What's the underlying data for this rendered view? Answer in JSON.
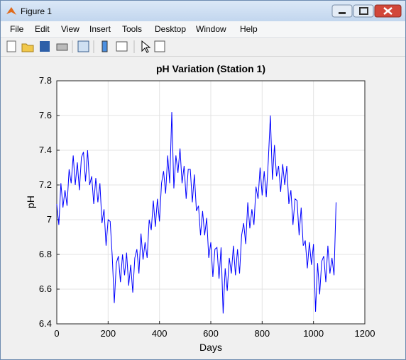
{
  "window": {
    "title": "Figure 1",
    "menu": [
      "File",
      "Edit",
      "View",
      "Insert",
      "Tools",
      "Desktop",
      "Window",
      "Help"
    ]
  },
  "chart_data": {
    "type": "line",
    "title": "pH Variation (Station 1)",
    "x_label": "Days",
    "y_label": "pH",
    "color": "#0000ff",
    "grid": true,
    "xlim": [
      0,
      1200
    ],
    "xticks": [
      0,
      200,
      400,
      600,
      800,
      1000,
      1200
    ],
    "ylim": [
      6.4,
      7.8
    ],
    "yticks": [
      6.4,
      6.6,
      6.8,
      7,
      7.2,
      7.4,
      7.6,
      7.8
    ],
    "x": [
      0,
      8,
      16,
      24,
      32,
      40,
      48,
      56,
      64,
      72,
      80,
      88,
      96,
      104,
      112,
      120,
      128,
      136,
      144,
      152,
      160,
      168,
      176,
      184,
      192,
      200,
      208,
      216,
      224,
      232,
      240,
      248,
      256,
      264,
      272,
      280,
      288,
      296,
      304,
      312,
      320,
      328,
      336,
      344,
      352,
      360,
      368,
      376,
      384,
      392,
      400,
      408,
      416,
      424,
      432,
      440,
      448,
      456,
      464,
      472,
      480,
      488,
      496,
      504,
      512,
      520,
      528,
      536,
      544,
      552,
      560,
      568,
      576,
      584,
      592,
      600,
      608,
      616,
      624,
      632,
      640,
      648,
      656,
      664,
      672,
      680,
      688,
      696,
      704,
      712,
      720,
      728,
      736,
      744,
      752,
      760,
      768,
      776,
      784,
      792,
      800,
      808,
      816,
      824,
      832,
      840,
      848,
      856,
      864,
      872,
      880,
      888,
      896,
      904,
      912,
      920,
      928,
      936,
      944,
      952,
      960,
      968,
      976,
      984,
      992,
      1000,
      1008,
      1016,
      1024,
      1032,
      1040,
      1048,
      1056,
      1064,
      1072,
      1080,
      1088
    ],
    "values": [
      7.09,
      6.97,
      7.21,
      7.07,
      7.17,
      7.08,
      7.29,
      7.21,
      7.37,
      7.2,
      7.33,
      7.17,
      7.36,
      7.39,
      7.22,
      7.4,
      7.2,
      7.25,
      7.09,
      7.24,
      7.1,
      7.21,
      6.98,
      7.06,
      6.85,
      7.0,
      6.99,
      6.79,
      6.52,
      6.75,
      6.79,
      6.64,
      6.8,
      6.68,
      6.81,
      6.62,
      6.74,
      6.58,
      6.78,
      6.83,
      6.69,
      6.92,
      6.77,
      6.87,
      6.78,
      7.0,
      6.94,
      7.11,
      6.96,
      7.12,
      6.99,
      7.21,
      7.28,
      7.15,
      7.37,
      7.21,
      7.62,
      7.18,
      7.37,
      7.27,
      7.41,
      7.21,
      7.31,
      7.12,
      7.29,
      7.29,
      7.1,
      7.26,
      7.05,
      7.08,
      6.91,
      7.05,
      6.91,
      7.01,
      6.78,
      6.87,
      6.67,
      6.83,
      6.84,
      6.66,
      6.84,
      6.46,
      6.72,
      6.59,
      6.78,
      6.69,
      6.85,
      6.68,
      6.83,
      6.69,
      6.91,
      6.98,
      6.86,
      7.1,
      6.95,
      7.06,
      6.97,
      7.19,
      7.12,
      7.3,
      7.14,
      7.28,
      7.13,
      7.34,
      7.6,
      7.23,
      7.43,
      7.25,
      7.31,
      7.16,
      7.32,
      7.2,
      7.31,
      7.09,
      7.17,
      6.97,
      7.12,
      7.11,
      6.91,
      7.07,
      6.85,
      6.88,
      6.72,
      6.87,
      6.74,
      6.86,
      6.47,
      6.75,
      6.57,
      6.76,
      6.79,
      6.64,
      6.85,
      6.69,
      6.78,
      6.68,
      7.1
    ]
  }
}
